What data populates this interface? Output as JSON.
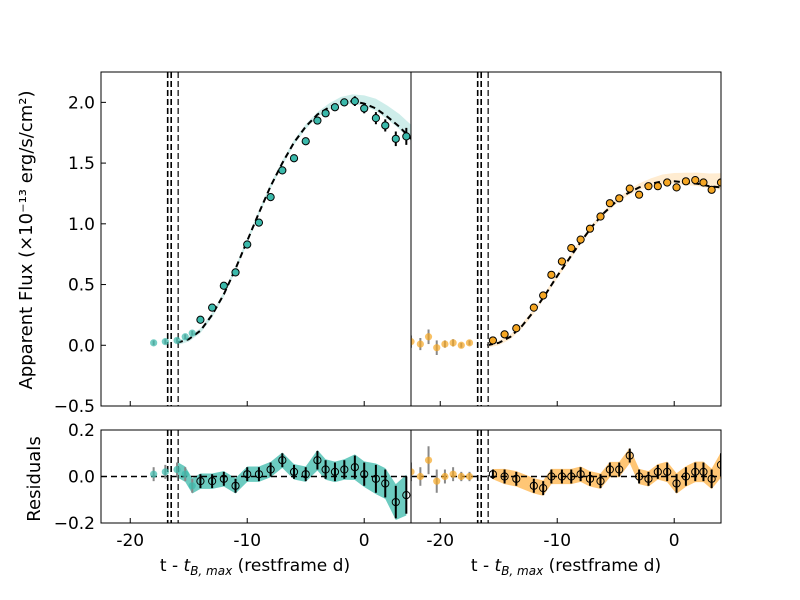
{
  "chart_data": {
    "type": "scatter",
    "y_label_main": "Apparent Flux (×10⁻¹³ erg/s/cm²)",
    "y_label_resid": "Residuals",
    "x_label": "t - t_B,max (restframe d)",
    "x_label_parts": {
      "prefix": "t - ",
      "t": "t",
      "sub": "B, max",
      "suffix": " (restframe d)"
    },
    "x_ticks": [
      "-20",
      "-10",
      "0"
    ],
    "x_tick_values": [
      -20,
      -10,
      0
    ],
    "y_ticks_main": [
      "−0.5",
      "0.0",
      "0.5",
      "1.0",
      "1.5",
      "2.0"
    ],
    "y_tick_values_main": [
      -0.5,
      0.0,
      0.5,
      1.0,
      1.5,
      2.0
    ],
    "y_ticks_resid": [
      "−0.2",
      "0.0",
      "0.2"
    ],
    "y_tick_values_resid": [
      -0.2,
      0.0,
      0.2
    ],
    "xlim": [
      -22.5,
      4.0
    ],
    "ylim_main": [
      -0.5,
      2.25
    ],
    "ylim_resid": [
      -0.2,
      0.2
    ],
    "vlines": [
      -16.8,
      -16.5,
      -15.9
    ],
    "panels": [
      {
        "name": "teal",
        "color": "#3BB9AB",
        "band_color": "#3BB9AB",
        "model": [
          [
            -16.0,
            0.02
          ],
          [
            -15.0,
            0.05
          ],
          [
            -14.0,
            0.12
          ],
          [
            -13.0,
            0.25
          ],
          [
            -12.0,
            0.42
          ],
          [
            -11.0,
            0.63
          ],
          [
            -10.0,
            0.86
          ],
          [
            -9.0,
            1.09
          ],
          [
            -8.0,
            1.31
          ],
          [
            -7.0,
            1.5
          ],
          [
            -6.0,
            1.67
          ],
          [
            -5.0,
            1.8
          ],
          [
            -4.0,
            1.9
          ],
          [
            -3.0,
            1.96
          ],
          [
            -2.0,
            2.0
          ],
          [
            -1.0,
            2.01
          ],
          [
            0.0,
            1.99
          ],
          [
            1.0,
            1.95
          ],
          [
            2.0,
            1.88
          ],
          [
            3.0,
            1.8
          ],
          [
            4.0,
            1.7
          ]
        ],
        "points": [
          {
            "x": -18.0,
            "y": 0.02,
            "e": 0.02,
            "r": 0.01,
            "re": 0.03,
            "pre": true
          },
          {
            "x": -17.0,
            "y": 0.03,
            "e": 0.02,
            "r": 0.02,
            "re": 0.03,
            "pre": true
          },
          {
            "x": -16.0,
            "y": 0.04,
            "e": 0.02,
            "r": 0.03,
            "re": 0.03,
            "pre": true
          },
          {
            "x": -15.3,
            "y": 0.07,
            "e": 0.02,
            "r": 0.01,
            "re": 0.03,
            "pre": true
          },
          {
            "x": -14.7,
            "y": 0.1,
            "e": 0.02,
            "r": -0.04,
            "re": 0.03,
            "pre": true
          },
          {
            "x": -14.0,
            "y": 0.21,
            "e": 0.02,
            "r": -0.02,
            "re": 0.03,
            "pre": false
          },
          {
            "x": -13.0,
            "y": 0.31,
            "e": 0.03,
            "r": -0.02,
            "re": 0.03,
            "pre": false
          },
          {
            "x": -12.0,
            "y": 0.49,
            "e": 0.03,
            "r": -0.01,
            "re": 0.03,
            "pre": false
          },
          {
            "x": -11.0,
            "y": 0.6,
            "e": 0.03,
            "r": -0.04,
            "re": 0.03,
            "pre": false
          },
          {
            "x": -10.0,
            "y": 0.83,
            "e": 0.03,
            "r": 0.01,
            "re": 0.03,
            "pre": false
          },
          {
            "x": -9.0,
            "y": 1.01,
            "e": 0.03,
            "r": 0.01,
            "re": 0.03,
            "pre": false
          },
          {
            "x": -8.0,
            "y": 1.22,
            "e": 0.03,
            "r": 0.03,
            "re": 0.03,
            "pre": false
          },
          {
            "x": -7.0,
            "y": 1.44,
            "e": 0.03,
            "r": 0.07,
            "re": 0.03,
            "pre": false
          },
          {
            "x": -6.0,
            "y": 1.54,
            "e": 0.03,
            "r": 0.02,
            "re": 0.03,
            "pre": false
          },
          {
            "x": -5.0,
            "y": 1.68,
            "e": 0.03,
            "r": 0.01,
            "re": 0.03,
            "pre": false
          },
          {
            "x": -4.0,
            "y": 1.85,
            "e": 0.03,
            "r": 0.07,
            "re": 0.04,
            "pre": false
          },
          {
            "x": -3.3,
            "y": 1.91,
            "e": 0.03,
            "r": 0.03,
            "re": 0.04,
            "pre": false
          },
          {
            "x": -2.5,
            "y": 1.96,
            "e": 0.03,
            "r": 0.02,
            "re": 0.04,
            "pre": false
          },
          {
            "x": -1.7,
            "y": 2.0,
            "e": 0.03,
            "r": 0.03,
            "re": 0.04,
            "pre": false
          },
          {
            "x": -0.8,
            "y": 2.01,
            "e": 0.04,
            "r": 0.04,
            "re": 0.05,
            "pre": false
          },
          {
            "x": 0.0,
            "y": 1.95,
            "e": 0.04,
            "r": 0.01,
            "re": 0.05,
            "pre": false
          },
          {
            "x": 1.0,
            "y": 1.87,
            "e": 0.05,
            "r": -0.01,
            "re": 0.06,
            "pre": false
          },
          {
            "x": 1.8,
            "y": 1.81,
            "e": 0.05,
            "r": -0.03,
            "re": 0.06,
            "pre": false
          },
          {
            "x": 2.7,
            "y": 1.7,
            "e": 0.06,
            "r": -0.11,
            "re": 0.07,
            "pre": false
          },
          {
            "x": 3.6,
            "y": 1.72,
            "e": 0.07,
            "r": -0.08,
            "re": 0.08,
            "pre": false
          }
        ]
      },
      {
        "name": "orange",
        "color": "#F5A623",
        "band_color": "#FFB347",
        "model": [
          [
            -16.0,
            0.0
          ],
          [
            -15.0,
            0.02
          ],
          [
            -14.0,
            0.07
          ],
          [
            -13.0,
            0.16
          ],
          [
            -12.0,
            0.28
          ],
          [
            -11.0,
            0.42
          ],
          [
            -10.0,
            0.57
          ],
          [
            -9.0,
            0.71
          ],
          [
            -8.0,
            0.85
          ],
          [
            -7.0,
            0.98
          ],
          [
            -6.0,
            1.09
          ],
          [
            -5.0,
            1.18
          ],
          [
            -4.0,
            1.25
          ],
          [
            -3.0,
            1.3
          ],
          [
            -2.0,
            1.33
          ],
          [
            -1.0,
            1.35
          ],
          [
            0.0,
            1.35
          ],
          [
            1.0,
            1.34
          ],
          [
            2.0,
            1.33
          ],
          [
            3.0,
            1.31
          ],
          [
            4.0,
            1.3
          ]
        ],
        "points": [
          {
            "x": -22.5,
            "y": 0.03,
            "e": 0.05,
            "r": 0.02,
            "re": 0.04,
            "pre": true
          },
          {
            "x": -21.7,
            "y": 0.01,
            "e": 0.05,
            "r": 0.0,
            "re": 0.04,
            "pre": true
          },
          {
            "x": -21.0,
            "y": 0.07,
            "e": 0.06,
            "r": 0.07,
            "re": 0.06,
            "pre": true
          },
          {
            "x": -20.3,
            "y": -0.02,
            "e": 0.06,
            "r": -0.02,
            "re": 0.05,
            "pre": true
          },
          {
            "x": -19.6,
            "y": 0.01,
            "e": 0.03,
            "r": 0.0,
            "re": 0.03,
            "pre": true
          },
          {
            "x": -18.9,
            "y": 0.02,
            "e": 0.03,
            "r": 0.01,
            "re": 0.03,
            "pre": true
          },
          {
            "x": -18.2,
            "y": 0.0,
            "e": 0.02,
            "r": 0.0,
            "re": 0.02,
            "pre": true
          },
          {
            "x": -17.5,
            "y": 0.02,
            "e": 0.02,
            "r": 0.0,
            "re": 0.02,
            "pre": true
          },
          {
            "x": -15.5,
            "y": 0.04,
            "e": 0.02,
            "r": 0.01,
            "re": 0.02,
            "pre": false
          },
          {
            "x": -14.5,
            "y": 0.09,
            "e": 0.02,
            "r": 0.0,
            "re": 0.03,
            "pre": false
          },
          {
            "x": -13.5,
            "y": 0.14,
            "e": 0.02,
            "r": -0.01,
            "re": 0.03,
            "pre": false
          },
          {
            "x": -12.0,
            "y": 0.31,
            "e": 0.03,
            "r": -0.04,
            "re": 0.03,
            "pre": false
          },
          {
            "x": -11.2,
            "y": 0.41,
            "e": 0.03,
            "r": -0.05,
            "re": 0.03,
            "pre": false
          },
          {
            "x": -10.5,
            "y": 0.58,
            "e": 0.03,
            "r": 0.0,
            "re": 0.03,
            "pre": false
          },
          {
            "x": -9.6,
            "y": 0.69,
            "e": 0.03,
            "r": 0.0,
            "re": 0.03,
            "pre": false
          },
          {
            "x": -8.8,
            "y": 0.8,
            "e": 0.03,
            "r": 0.0,
            "re": 0.03,
            "pre": false
          },
          {
            "x": -8.0,
            "y": 0.87,
            "e": 0.03,
            "r": 0.01,
            "re": 0.03,
            "pre": false
          },
          {
            "x": -7.2,
            "y": 0.96,
            "e": 0.03,
            "r": -0.01,
            "re": 0.03,
            "pre": false
          },
          {
            "x": -6.3,
            "y": 1.06,
            "e": 0.03,
            "r": -0.02,
            "re": 0.03,
            "pre": false
          },
          {
            "x": -5.5,
            "y": 1.17,
            "e": 0.03,
            "r": 0.03,
            "re": 0.03,
            "pre": false
          },
          {
            "x": -4.7,
            "y": 1.21,
            "e": 0.03,
            "r": 0.03,
            "re": 0.03,
            "pre": false
          },
          {
            "x": -3.8,
            "y": 1.29,
            "e": 0.03,
            "r": 0.09,
            "re": 0.03,
            "pre": false
          },
          {
            "x": -3.0,
            "y": 1.24,
            "e": 0.03,
            "r": 0.0,
            "re": 0.03,
            "pre": false
          },
          {
            "x": -2.2,
            "y": 1.31,
            "e": 0.03,
            "r": -0.01,
            "re": 0.03,
            "pre": false
          },
          {
            "x": -1.4,
            "y": 1.31,
            "e": 0.03,
            "r": 0.02,
            "re": 0.03,
            "pre": false
          },
          {
            "x": -0.6,
            "y": 1.34,
            "e": 0.03,
            "r": 0.02,
            "re": 0.04,
            "pre": false
          },
          {
            "x": 0.2,
            "y": 1.3,
            "e": 0.03,
            "r": -0.03,
            "re": 0.04,
            "pre": false
          },
          {
            "x": 1.0,
            "y": 1.35,
            "e": 0.03,
            "r": 0.0,
            "re": 0.04,
            "pre": false
          },
          {
            "x": 1.8,
            "y": 1.36,
            "e": 0.03,
            "r": 0.02,
            "re": 0.04,
            "pre": false
          },
          {
            "x": 2.5,
            "y": 1.34,
            "e": 0.03,
            "r": 0.02,
            "re": 0.04,
            "pre": false
          },
          {
            "x": 3.2,
            "y": 1.28,
            "e": 0.03,
            "r": -0.01,
            "re": 0.04,
            "pre": false
          },
          {
            "x": 4.0,
            "y": 1.34,
            "e": 0.03,
            "r": 0.05,
            "re": 0.05,
            "pre": false
          }
        ]
      }
    ]
  }
}
